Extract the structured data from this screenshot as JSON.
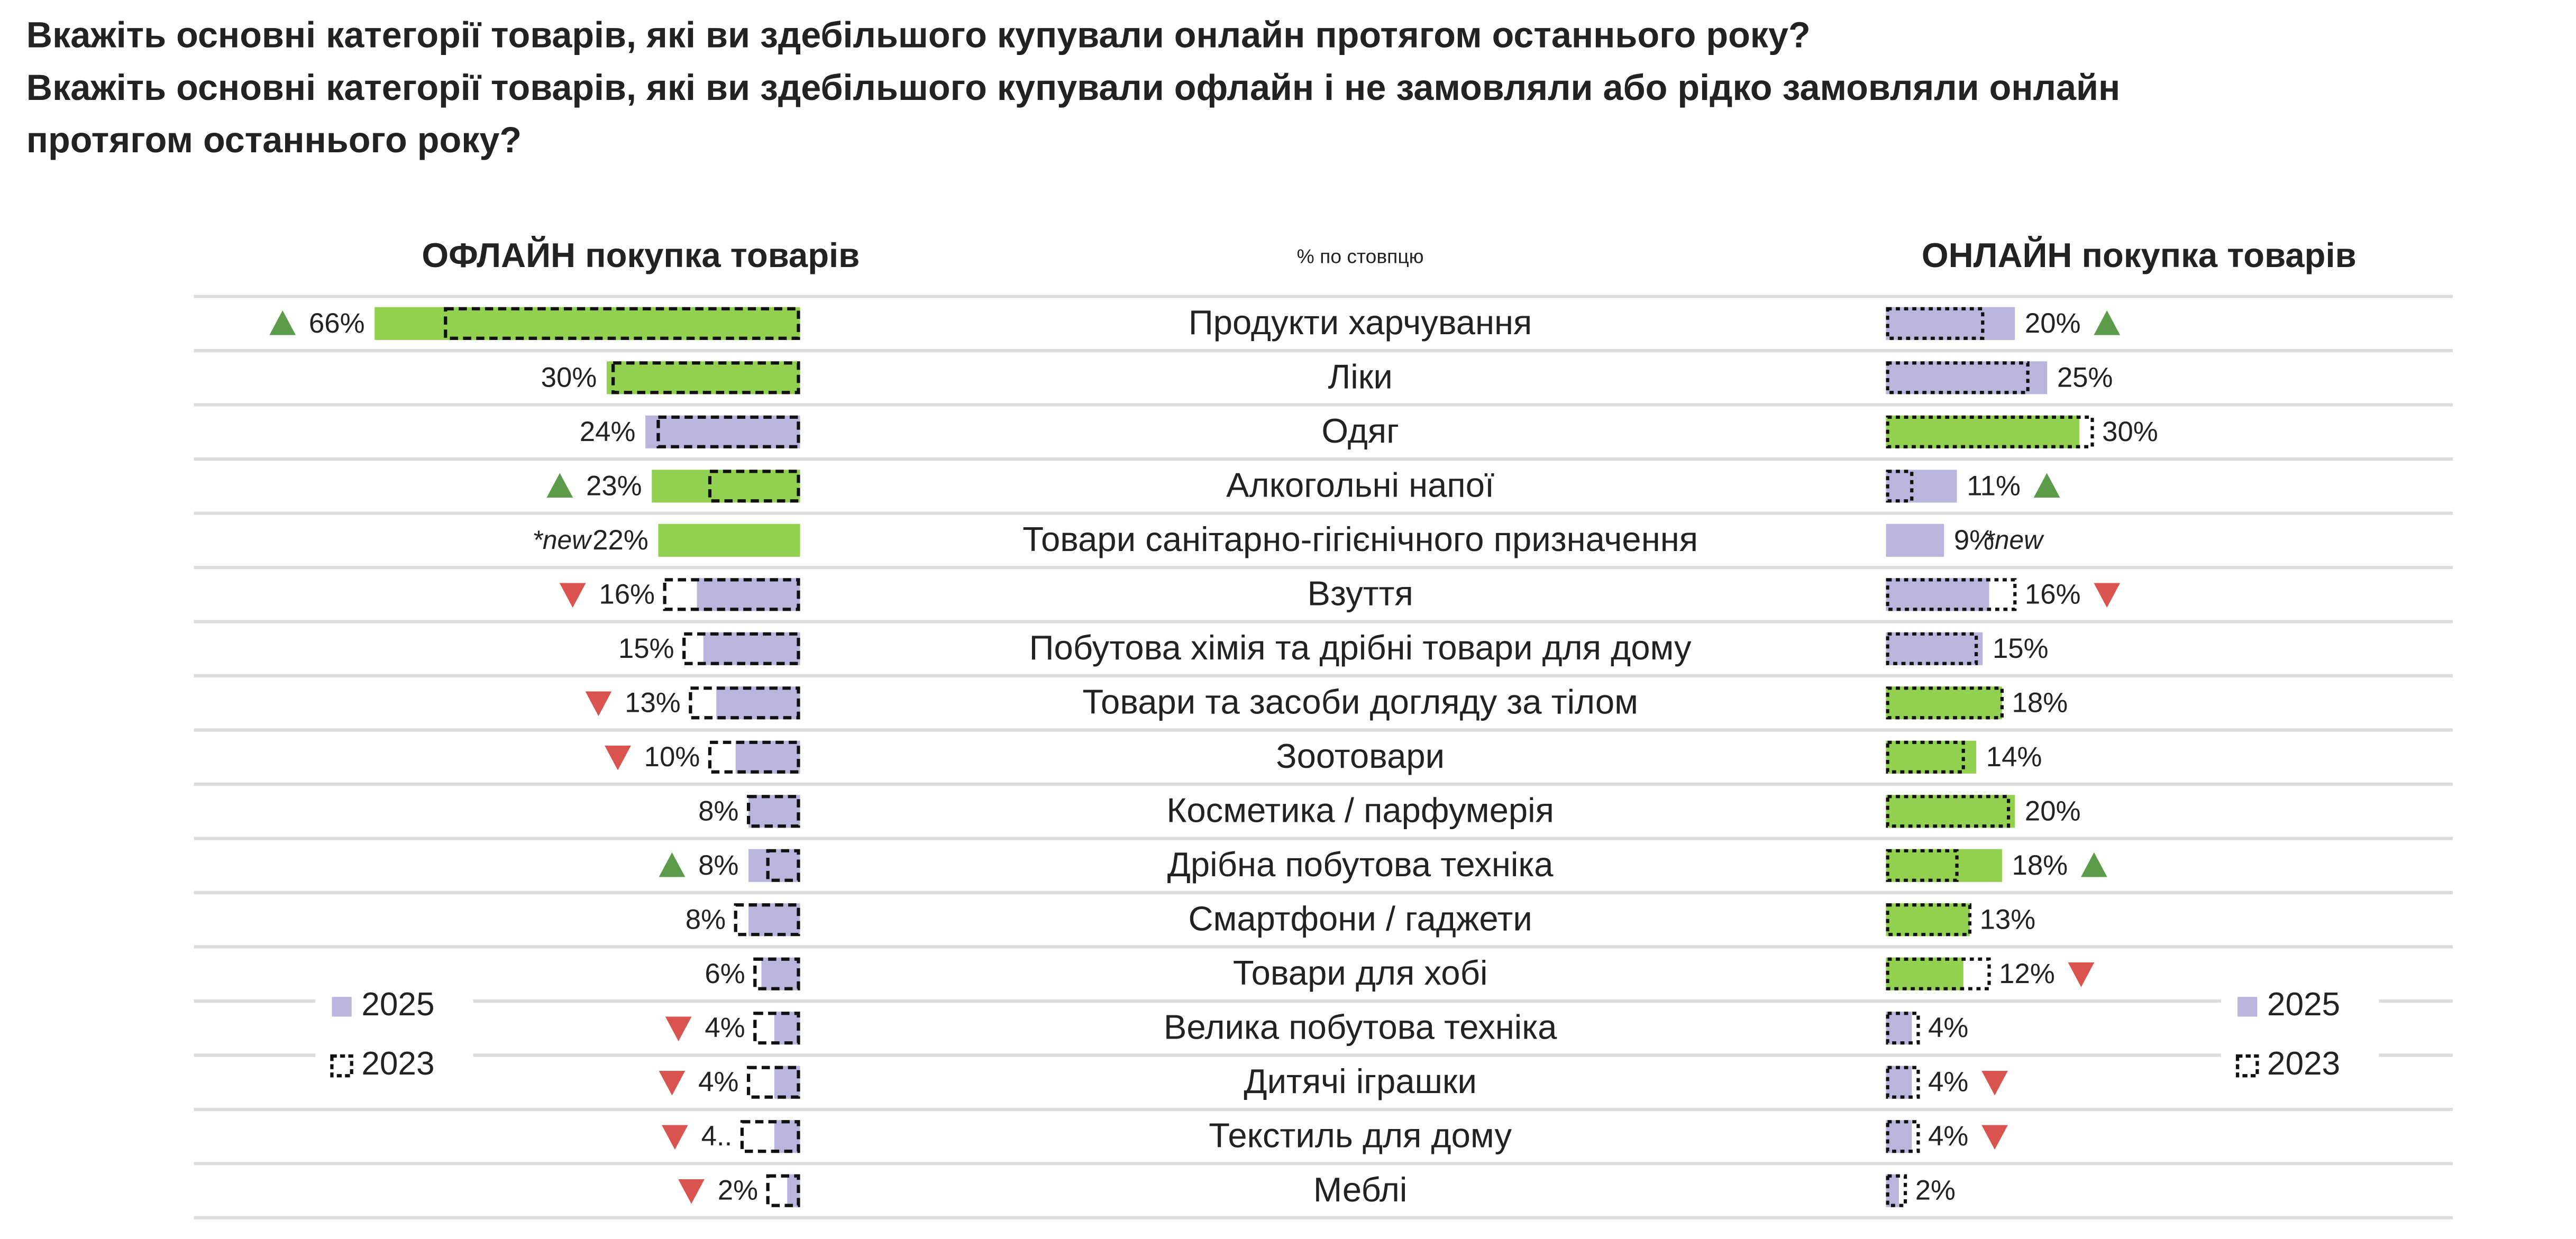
{
  "chart_data": {
    "type": "butterfly",
    "title": [
      "Вкажіть основні категорії товарів, які ви здебільшого купували онлайн протягом останнього року?",
      "Вкажіть основні категорії товарів, які ви здебільшого купували офлайн і не замовляли або рідко замовляли онлайн",
      "протягом останнього року?"
    ],
    "note": "% по стовпцю",
    "categories": [
      "Продукти харчування",
      "Ліки",
      "Одяг",
      "Алкогольні напої",
      "Товари санітарно-гігієнічного призначення",
      "Взуття",
      "Побутова хімія та дрібні товари для дому",
      "Товари та засоби догляду за тілом",
      "Зоотовари",
      "Косметика / парфумерія",
      "Дрібна побутова техніка",
      "Смартфони / гаджети",
      "Товари для хобі",
      "Велика побутова техніка",
      "Дитячі іграшки",
      "Текстиль для дому",
      "Меблі"
    ],
    "panels": [
      {
        "title": "ОФЛАЙН покупка товарів",
        "side": "left",
        "xlim": [
          0,
          66
        ],
        "legend": "bottom-left",
        "new_label": "*new",
        "series": [
          {
            "name": "2025",
            "values": [
              66,
              30,
              24,
              23,
              22,
              16,
              15,
              13,
              10,
              8,
              8,
              8,
              6,
              4,
              4,
              4,
              2
            ],
            "value_labels": [
              "66%",
              "30%",
              "24%",
              "23%",
              "22%",
              "16%",
              "15%",
              "13%",
              "10%",
              "8%",
              "8%",
              "8%",
              "6%",
              "4%",
              "4%",
              "4..",
              "2%"
            ],
            "colors": [
              "#92d050",
              "#92d050",
              "#b8b6dc",
              "#92d050",
              "#92d050",
              "#b8b6dc",
              "#b8b6dc",
              "#b8b6dc",
              "#b8b6dc",
              "#b8b6dc",
              "#b8b6dc",
              "#b8b6dc",
              "#b8b6dc",
              "#b8b6dc",
              "#b8b6dc",
              "#b8b6dc",
              "#b8b6dc"
            ]
          },
          {
            "name": "2023",
            "values": [
              55,
              29,
              22,
              14,
              null,
              21,
              18,
              17,
              14,
              8,
              5,
              10,
              7,
              7,
              8,
              9,
              5
            ]
          }
        ],
        "trends": [
          "up",
          null,
          null,
          "up",
          null,
          "down",
          null,
          "down",
          "down",
          null,
          "up",
          null,
          null,
          "down",
          "down",
          "down",
          "down"
        ]
      },
      {
        "title": "ОНЛАЙН покупка товарів",
        "side": "right",
        "xlim": [
          0,
          66
        ],
        "legend": "bottom-right",
        "new_label": "*new",
        "series": [
          {
            "name": "2025",
            "values": [
              20,
              25,
              30,
              11,
              9,
              16,
              15,
              18,
              14,
              20,
              18,
              13,
              12,
              4,
              4,
              4,
              2
            ],
            "value_labels": [
              "20%",
              "25%",
              "30%",
              "11%",
              "9%",
              "16%",
              "15%",
              "18%",
              "14%",
              "20%",
              "18%",
              "13%",
              "12%",
              "4%",
              "4%",
              "4%",
              "2%"
            ],
            "colors": [
              "#b8b6dc",
              "#b8b6dc",
              "#92d050",
              "#b8b6dc",
              "#b8b6dc",
              "#b8b6dc",
              "#b8b6dc",
              "#92d050",
              "#92d050",
              "#92d050",
              "#92d050",
              "#92d050",
              "#92d050",
              "#b8b6dc",
              "#b8b6dc",
              "#b8b6dc",
              "#b8b6dc"
            ]
          },
          {
            "name": "2023",
            "values": [
              15,
              22,
              32,
              4,
              null,
              20,
              14,
              18,
              12,
              19,
              11,
              13,
              16,
              5,
              5,
              5,
              3
            ]
          }
        ],
        "trends": [
          "up",
          null,
          null,
          "up",
          null,
          "down",
          null,
          null,
          null,
          null,
          "up",
          null,
          "down",
          null,
          "down",
          "down",
          null
        ]
      }
    ]
  }
}
